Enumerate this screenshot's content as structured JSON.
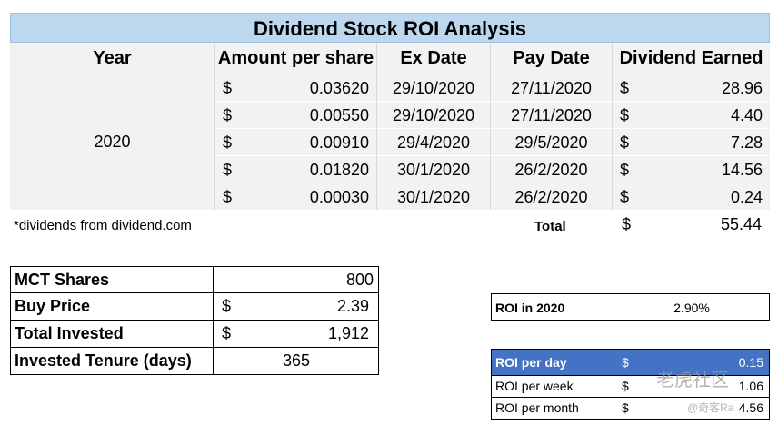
{
  "title": "Dividend Stock ROI Analysis",
  "columns": [
    "Year",
    "Amount per share",
    "Ex Date",
    "Pay Date",
    "Dividend Earned"
  ],
  "year": "2020",
  "currency": "$",
  "rows": [
    {
      "amount": "0.03620",
      "ex_date": "29/10/2020",
      "pay_date": "27/11/2020",
      "earned": "28.96"
    },
    {
      "amount": "0.00550",
      "ex_date": "29/10/2020",
      "pay_date": "27/11/2020",
      "earned": "4.40"
    },
    {
      "amount": "0.00910",
      "ex_date": "29/4/2020",
      "pay_date": "29/5/2020",
      "earned": "7.28"
    },
    {
      "amount": "0.01820",
      "ex_date": "30/1/2020",
      "pay_date": "26/2/2020",
      "earned": "14.56"
    },
    {
      "amount": "0.00030",
      "ex_date": "30/1/2020",
      "pay_date": "26/2/2020",
      "earned": "0.24"
    }
  ],
  "note": "*dividends from dividend.com",
  "total_label": "Total",
  "total_value": "55.44",
  "investment": {
    "shares_label": "MCT Shares",
    "shares_value": "800",
    "buy_label": "Buy Price",
    "buy_value": "2.39",
    "invested_label": "Total Invested",
    "invested_value": "1,912",
    "tenure_label": "Invested Tenure (days)",
    "tenure_value": "365"
  },
  "roi_year": {
    "label": "ROI in 2020",
    "value": "2.90%"
  },
  "roi_rates": [
    {
      "label": "ROI per day",
      "value": "0.15"
    },
    {
      "label": "ROI per week",
      "value": "1.06"
    },
    {
      "label": "ROI per month",
      "value": "4.56"
    }
  ],
  "watermark": {
    "text": "老虎社区",
    "sub": "@奇客Ra"
  },
  "colors": {
    "header_blue": "#bdd7ee",
    "highlight_blue": "#4472c4",
    "row_gray": "#f2f2f2"
  }
}
